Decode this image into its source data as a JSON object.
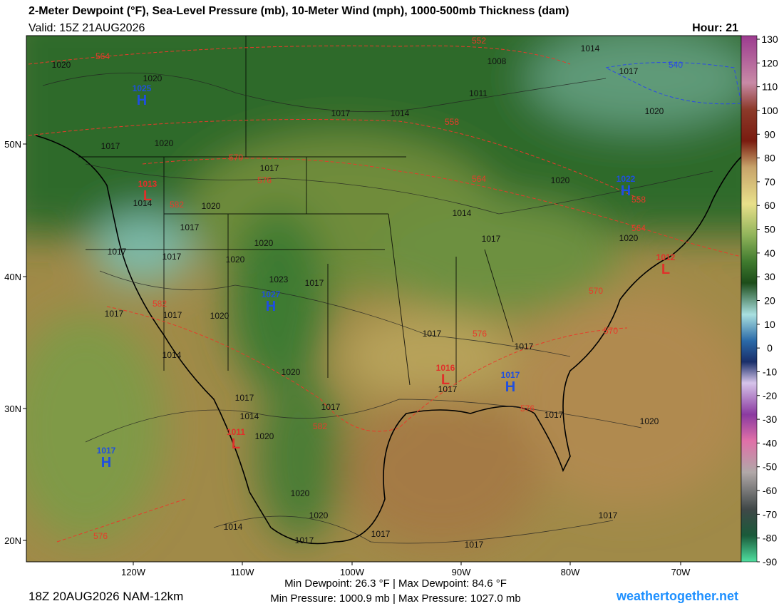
{
  "header": {
    "title": "2-Meter Dewpoint (°F), Sea-Level Pressure (mb), 10-Meter Wind (mph), 1000-500mb Thickness (dam)",
    "valid": "Valid: 15Z 21AUG2026",
    "hour": "Hour: 21"
  },
  "colorbar_ticks": [
    130,
    120,
    110,
    100,
    90,
    80,
    70,
    60,
    50,
    40,
    30,
    20,
    10,
    0,
    -10,
    -20,
    -30,
    -40,
    -50,
    -60,
    -70,
    -80,
    -90
  ],
  "latitude_labels": [
    "50N",
    "40N",
    "30N",
    "20N"
  ],
  "longitude_labels": [
    "120W",
    "110W",
    "100W",
    "90W",
    "80W",
    "70W"
  ],
  "isobar_labels": [
    "1020",
    "1020",
    "1008",
    "1014",
    "1017",
    "1011",
    "1017",
    "1014",
    "1020",
    "1017",
    "1020",
    "1017",
    "1020",
    "1014",
    "1020",
    "1017",
    "1014",
    "1020",
    "1017",
    "1020",
    "1017",
    "1017",
    "1020",
    "1023",
    "1017",
    "1017",
    "1017",
    "1020",
    "1017",
    "1017",
    "1014",
    "1020",
    "1017",
    "1017",
    "1017",
    "1014",
    "1017",
    "1020",
    "1020",
    "1020",
    "1020",
    "1014",
    "1017",
    "1017",
    "1017",
    "1017"
  ],
  "thickness_labels": [
    "564",
    "552",
    "558",
    "570",
    "576",
    "564",
    "582",
    "558",
    "564",
    "582",
    "570",
    "576",
    "570",
    "576",
    "582",
    "576"
  ],
  "cold_thickness_labels": [
    "540"
  ],
  "pressure_centers": [
    {
      "type": "H",
      "pressure": "1025"
    },
    {
      "type": "H",
      "pressure": "1027"
    },
    {
      "type": "H",
      "pressure": "1017"
    },
    {
      "type": "H",
      "pressure": "1017"
    },
    {
      "type": "H",
      "pressure": "1022"
    },
    {
      "type": "L",
      "pressure": "1013"
    },
    {
      "type": "L",
      "pressure": "1016"
    },
    {
      "type": "L",
      "pressure": "1011"
    },
    {
      "type": "L",
      "pressure": "1012"
    }
  ],
  "footer": {
    "run": "18Z 20AUG2026 NAM-12km",
    "dewpoint_range": "Min Dewpoint: 26.3 °F | Max Dewpoint: 84.6 °F",
    "pressure_range": "Min Pressure: 1000.9 mb | Max Pressure: 1027.0 mb",
    "site": "weathertogether.net"
  }
}
